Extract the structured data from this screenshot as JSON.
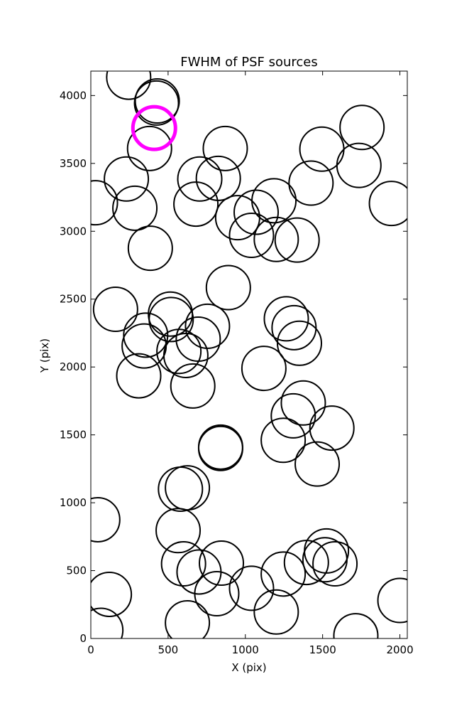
{
  "chart_data": {
    "type": "scatter",
    "title": "FWHM of PSF sources",
    "xlabel": "X (pix)",
    "ylabel": "Y (pix)",
    "xlim": [
      0,
      2048
    ],
    "ylim": [
      0,
      4180
    ],
    "xticks": [
      0,
      500,
      1000,
      1500,
      2000
    ],
    "yticks": [
      0,
      500,
      1000,
      1500,
      2000,
      2500,
      3000,
      3500,
      4000
    ],
    "grid": false,
    "marker": "open-circle",
    "colors": {
      "sources": "#000000",
      "highlight": "#ff00ff"
    },
    "sources": [
      {
        "x": 245,
        "y": 4135
      },
      {
        "x": 430,
        "y": 3960
      },
      {
        "x": 425,
        "y": 3945
      },
      {
        "x": 380,
        "y": 3610
      },
      {
        "x": 1755,
        "y": 3765
      },
      {
        "x": 870,
        "y": 3610
      },
      {
        "x": 1495,
        "y": 3605
      },
      {
        "x": 1735,
        "y": 3485
      },
      {
        "x": 230,
        "y": 3385
      },
      {
        "x": 705,
        "y": 3385
      },
      {
        "x": 825,
        "y": 3390
      },
      {
        "x": 1425,
        "y": 3355
      },
      {
        "x": 30,
        "y": 3210
      },
      {
        "x": 285,
        "y": 3170
      },
      {
        "x": 680,
        "y": 3200
      },
      {
        "x": 1185,
        "y": 3225
      },
      {
        "x": 1945,
        "y": 3205
      },
      {
        "x": 950,
        "y": 3100
      },
      {
        "x": 1070,
        "y": 3140
      },
      {
        "x": 1040,
        "y": 2970
      },
      {
        "x": 1200,
        "y": 2940
      },
      {
        "x": 1335,
        "y": 2935
      },
      {
        "x": 385,
        "y": 2875
      },
      {
        "x": 890,
        "y": 2585
      },
      {
        "x": 160,
        "y": 2425
      },
      {
        "x": 515,
        "y": 2390
      },
      {
        "x": 520,
        "y": 2350
      },
      {
        "x": 755,
        "y": 2300
      },
      {
        "x": 1265,
        "y": 2355
      },
      {
        "x": 1315,
        "y": 2290
      },
      {
        "x": 1350,
        "y": 2175
      },
      {
        "x": 355,
        "y": 2235
      },
      {
        "x": 345,
        "y": 2155
      },
      {
        "x": 695,
        "y": 2205
      },
      {
        "x": 570,
        "y": 2115
      },
      {
        "x": 615,
        "y": 2085
      },
      {
        "x": 310,
        "y": 1935
      },
      {
        "x": 1120,
        "y": 1990
      },
      {
        "x": 660,
        "y": 1860
      },
      {
        "x": 1375,
        "y": 1735
      },
      {
        "x": 1310,
        "y": 1640
      },
      {
        "x": 1245,
        "y": 1460
      },
      {
        "x": 1560,
        "y": 1550
      },
      {
        "x": 840,
        "y": 1410
      },
      {
        "x": 840,
        "y": 1400
      },
      {
        "x": 1465,
        "y": 1285
      },
      {
        "x": 580,
        "y": 1100
      },
      {
        "x": 625,
        "y": 1110
      },
      {
        "x": 45,
        "y": 875
      },
      {
        "x": 565,
        "y": 795
      },
      {
        "x": 1525,
        "y": 645
      },
      {
        "x": 1395,
        "y": 560
      },
      {
        "x": 1515,
        "y": 580
      },
      {
        "x": 1580,
        "y": 550
      },
      {
        "x": 600,
        "y": 550
      },
      {
        "x": 700,
        "y": 490
      },
      {
        "x": 845,
        "y": 555
      },
      {
        "x": 1245,
        "y": 475
      },
      {
        "x": 120,
        "y": 325
      },
      {
        "x": 815,
        "y": 330
      },
      {
        "x": 1040,
        "y": 370
      },
      {
        "x": 1200,
        "y": 195
      },
      {
        "x": 2000,
        "y": 280
      },
      {
        "x": 65,
        "y": 60
      },
      {
        "x": 625,
        "y": 115
      },
      {
        "x": 1715,
        "y": 20
      }
    ],
    "highlight": [
      {
        "x": 410,
        "y": 3760
      }
    ]
  }
}
